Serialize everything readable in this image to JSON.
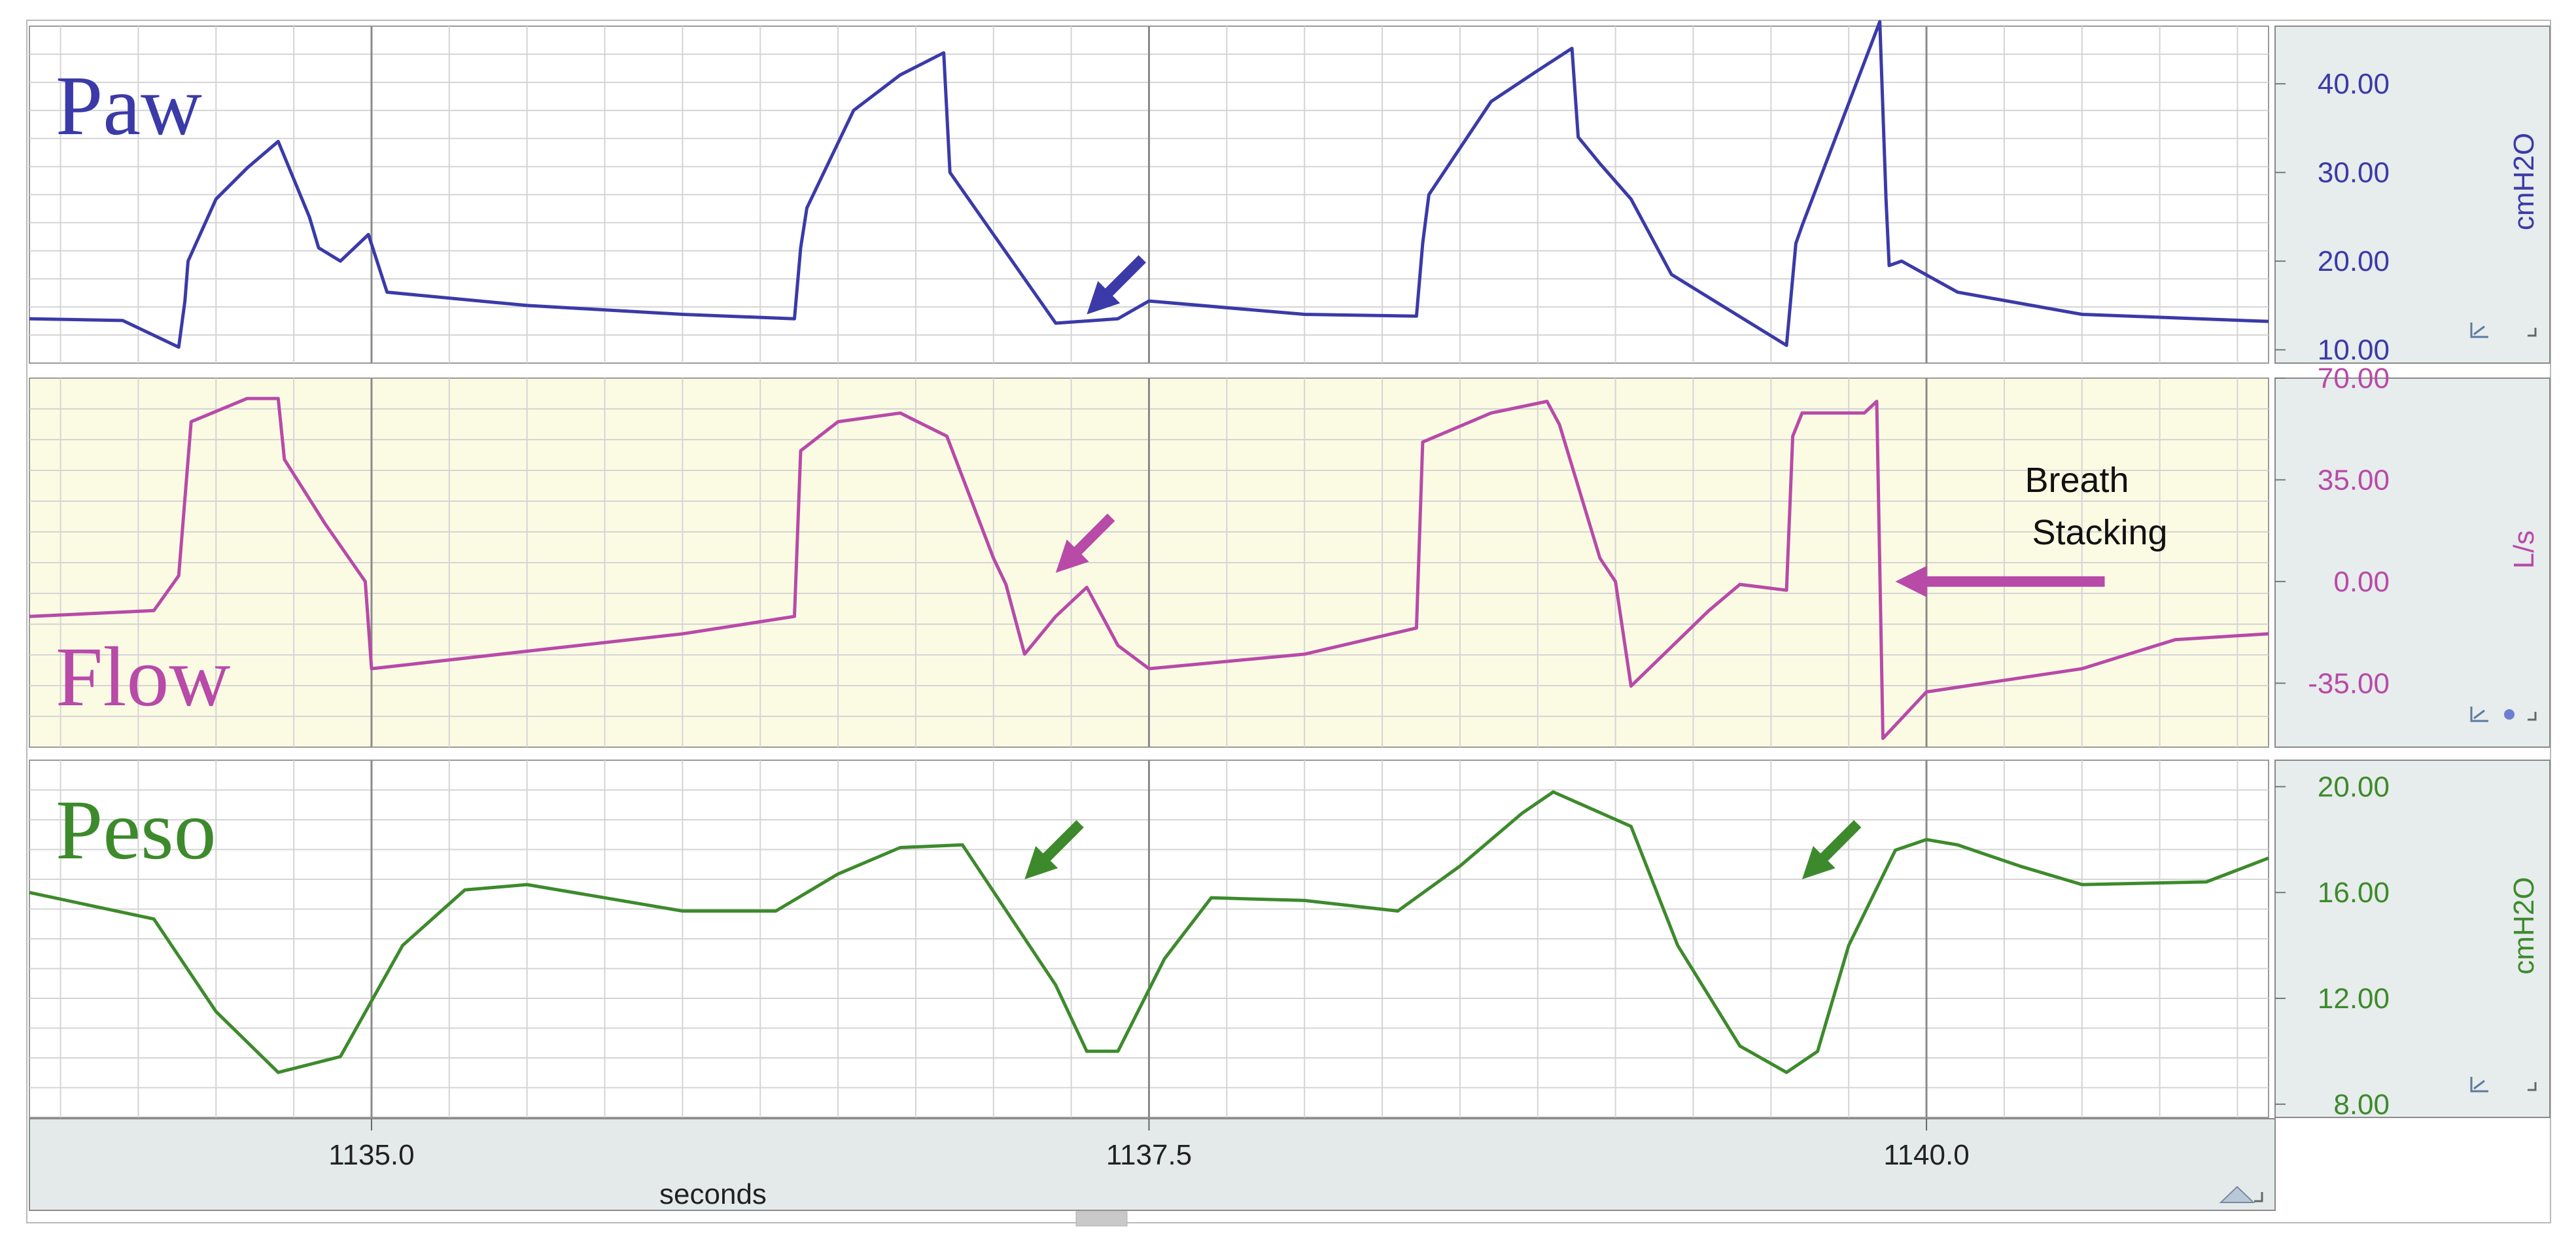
{
  "panels": [
    {
      "label": "Paw",
      "unit": "cmH2O",
      "color": "#3b3aa8",
      "ticks": [
        "40.00",
        "30.00",
        "20.00",
        "10.00"
      ],
      "tick_values": [
        40,
        30,
        20,
        10
      ],
      "ylim": [
        8.5,
        46.5
      ],
      "background": "#ffffff"
    },
    {
      "label": "Flow",
      "unit": "L/s",
      "color": "#b84aa8",
      "ticks": [
        "70.00",
        "35.00",
        "0.00",
        "-35.00"
      ],
      "tick_values": [
        70,
        35,
        0,
        -35
      ],
      "ylim": [
        -57,
        70
      ],
      "background": "#fbfbe4"
    },
    {
      "label": "Peso",
      "unit": "cmH2O",
      "color": "#3d8a2c",
      "ticks": [
        "20.00",
        "16.00",
        "12.00",
        "8.00"
      ],
      "tick_values": [
        20,
        16,
        12,
        8
      ],
      "ylim": [
        7.5,
        21
      ],
      "background": "#ffffff"
    }
  ],
  "annotations": {
    "breath_stacking_line1": "Breath",
    "breath_stacking_line2": "Stacking"
  },
  "x_axis": {
    "label": "seconds",
    "tick_labels": [
      "1135.0",
      "1137.5",
      "1140.0"
    ],
    "tick_values": [
      1135.0,
      1137.5,
      1140.0
    ],
    "range": [
      1133.9,
      1141.1
    ]
  },
  "icons": [
    "axis-scale-icon",
    "settings-dot-icon",
    "resize-corner-icon",
    "autoscale-icon"
  ],
  "chart_data": {
    "type": "line",
    "xlabel": "seconds",
    "xlim": [
      1133.9,
      1141.1
    ],
    "series": [
      {
        "name": "Paw",
        "unit": "cmH2O",
        "ylim": [
          8.5,
          46.5
        ],
        "x": [
          1133.9,
          1134.2,
          1134.38,
          1134.4,
          1134.41,
          1134.5,
          1134.6,
          1134.7,
          1134.8,
          1134.83,
          1134.9,
          1134.99,
          1135.05,
          1135.5,
          1136.0,
          1136.36,
          1136.38,
          1136.4,
          1136.55,
          1136.7,
          1136.84,
          1136.86,
          1137.0,
          1137.2,
          1137.4,
          1137.5,
          1138.0,
          1138.36,
          1138.38,
          1138.4,
          1138.6,
          1138.75,
          1138.86,
          1138.88,
          1138.95,
          1139.05,
          1139.18,
          1139.55,
          1139.58,
          1139.6,
          1139.85,
          1139.87,
          1139.88,
          1139.92,
          1140.1,
          1140.5,
          1141.1
        ],
        "y": [
          13.5,
          13.3,
          10.3,
          15.5,
          20.0,
          27.0,
          30.5,
          33.5,
          25.0,
          21.5,
          20.0,
          23.0,
          16.5,
          15.0,
          14.0,
          13.5,
          21.5,
          26.0,
          37.0,
          41.0,
          43.5,
          30.0,
          23.0,
          13.0,
          13.5,
          15.5,
          14.0,
          13.8,
          22.0,
          27.5,
          38.0,
          41.5,
          44.0,
          34.0,
          31.0,
          27.0,
          18.5,
          10.5,
          22.0,
          24.0,
          47.0,
          27.0,
          19.5,
          20.0,
          16.5,
          14.0,
          13.2
        ]
      },
      {
        "name": "Flow",
        "unit": "L/s",
        "ylim": [
          -57,
          70
        ],
        "x": [
          1133.9,
          1134.3,
          1134.38,
          1134.42,
          1134.6,
          1134.7,
          1134.72,
          1134.85,
          1134.98,
          1135.0,
          1135.5,
          1136.0,
          1136.36,
          1136.38,
          1136.5,
          1136.7,
          1136.85,
          1137.0,
          1137.04,
          1137.1,
          1137.2,
          1137.3,
          1137.4,
          1137.5,
          1138.0,
          1138.36,
          1138.38,
          1138.6,
          1138.78,
          1138.82,
          1138.95,
          1139.0,
          1139.05,
          1139.3,
          1139.4,
          1139.55,
          1139.57,
          1139.6,
          1139.8,
          1139.84,
          1139.86,
          1140.0,
          1140.5,
          1140.8,
          1141.1
        ],
        "y": [
          -12.0,
          -10.0,
          2.0,
          55.0,
          63.0,
          63.0,
          42.0,
          20.0,
          0.0,
          -30.0,
          -24.0,
          -18.0,
          -12.0,
          45.0,
          55.0,
          58.0,
          50.0,
          8.0,
          -1.0,
          -25.0,
          -12.0,
          -2.0,
          -22.0,
          -30.0,
          -25.0,
          -16.0,
          48.0,
          58.0,
          62.0,
          54.0,
          8.0,
          0.0,
          -36.0,
          -10.0,
          -1.0,
          -3.0,
          50.0,
          58.0,
          58.0,
          62.0,
          -54.0,
          -38.0,
          -30.0,
          -20.0,
          -18.0
        ]
      },
      {
        "name": "Peso",
        "unit": "cmH2O",
        "ylim": [
          7.5,
          21
        ],
        "x": [
          1133.9,
          1134.3,
          1134.5,
          1134.7,
          1134.9,
          1135.1,
          1135.3,
          1135.5,
          1136.0,
          1136.3,
          1136.5,
          1136.7,
          1136.9,
          1137.2,
          1137.3,
          1137.4,
          1137.55,
          1137.7,
          1138.0,
          1138.3,
          1138.5,
          1138.7,
          1138.8,
          1139.05,
          1139.2,
          1139.4,
          1139.55,
          1139.65,
          1139.75,
          1139.9,
          1140.0,
          1140.1,
          1140.3,
          1140.5,
          1140.9,
          1141.1
        ],
        "y": [
          16.0,
          15.0,
          11.5,
          9.2,
          9.8,
          14.0,
          16.1,
          16.3,
          15.3,
          15.3,
          16.7,
          17.7,
          17.8,
          12.5,
          10.0,
          10.0,
          13.5,
          15.8,
          15.7,
          15.3,
          17.0,
          19.0,
          19.8,
          18.5,
          14.0,
          10.2,
          9.2,
          10.0,
          14.0,
          17.6,
          18.0,
          17.8,
          17.0,
          16.3,
          16.4,
          17.3
        ]
      }
    ],
    "arrows": [
      {
        "panel": "Paw",
        "x": 1137.3,
        "y": 14.0
      },
      {
        "panel": "Flow",
        "x": 1137.2,
        "y": 3.0
      },
      {
        "panel": "Peso",
        "x": 1137.1,
        "y": 16.5
      },
      {
        "panel": "Peso",
        "x": 1139.6,
        "y": 16.5
      },
      {
        "panel": "Flow",
        "x": 1139.9,
        "y": 0.0
      }
    ]
  }
}
